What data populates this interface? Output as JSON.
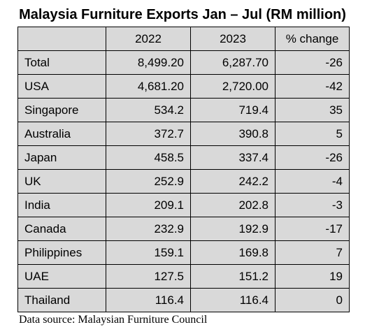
{
  "title": "Malaysia Furniture Exports Jan – Jul (RM million)",
  "table": {
    "headers": [
      "",
      "2022",
      "2023",
      "% change"
    ],
    "rows": [
      {
        "name": "Total",
        "y2022": "8,499.20",
        "y2023": "6,287.70",
        "change": "-26"
      },
      {
        "name": "USA",
        "y2022": "4,681.20",
        "y2023": "2,720.00",
        "change": "-42"
      },
      {
        "name": "Singapore",
        "y2022": "534.2",
        "y2023": "719.4",
        "change": "35"
      },
      {
        "name": "Australia",
        "y2022": "372.7",
        "y2023": "390.8",
        "change": "5"
      },
      {
        "name": "Japan",
        "y2022": "458.5",
        "y2023": "337.4",
        "change": "-26"
      },
      {
        "name": "UK",
        "y2022": "252.9",
        "y2023": "242.2",
        "change": "-4"
      },
      {
        "name": "India",
        "y2022": "209.1",
        "y2023": "202.8",
        "change": "-3"
      },
      {
        "name": "Canada",
        "y2022": "232.9",
        "y2023": "192.9",
        "change": "-17"
      },
      {
        "name": "Philippines",
        "y2022": "159.1",
        "y2023": "169.8",
        "change": "7"
      },
      {
        "name": "UAE",
        "y2022": "127.5",
        "y2023": "151.2",
        "change": "19"
      },
      {
        "name": "Thailand",
        "y2022": "116.4",
        "y2023": "116.4",
        "change": "0"
      }
    ]
  },
  "source": "Data source: Malaysian Furniture Council"
}
